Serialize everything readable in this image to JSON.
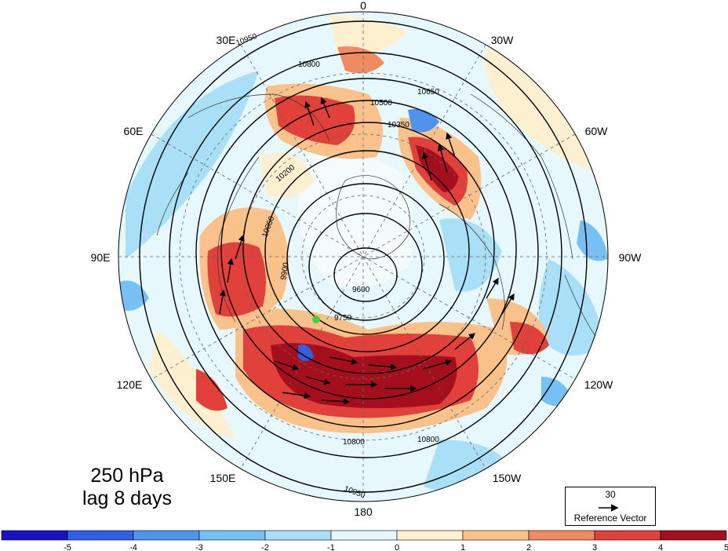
{
  "panel": {
    "level": "250 hPa",
    "lag": "lag 8 days"
  },
  "longitude_labels": {
    "lon_0": "0",
    "lon_30w": "30W",
    "lon_60w": "60W",
    "lon_90w": "90W",
    "lon_120w": "120W",
    "lon_150w": "150W",
    "lon_180": "180",
    "lon_150e": "150E",
    "lon_120e": "120E",
    "lon_90e": "90E",
    "lon_60e": "60E",
    "lon_30e": "30E"
  },
  "contour_labels": [
    "10950",
    "10800",
    "10650",
    "10500",
    "10350",
    "10200",
    "10050",
    "9900",
    "9750",
    "9600"
  ],
  "reference_vector": {
    "magnitude": "30",
    "label": "Reference Vector"
  },
  "colorbar": {
    "ticks": [
      "-5",
      "-4",
      "-3",
      "-2",
      "-1",
      "0",
      "1",
      "2",
      "3",
      "4",
      "5"
    ],
    "colors": [
      "#1a10c8",
      "#2f5fe6",
      "#4f93ee",
      "#77c0f4",
      "#a9e0f8",
      "#e6f8fb",
      "#fdf0d0",
      "#f9c28a",
      "#f08a60",
      "#e2403a",
      "#a50f1d"
    ]
  }
}
